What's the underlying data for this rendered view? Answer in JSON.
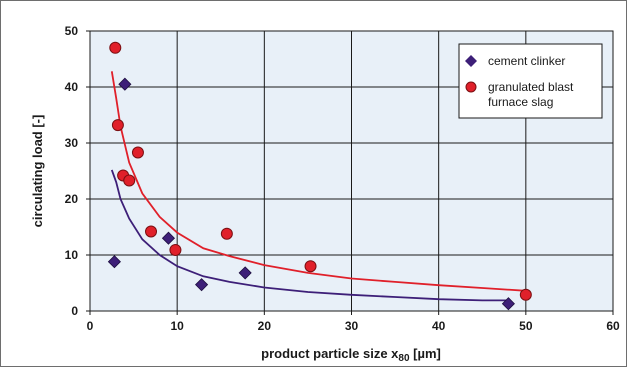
{
  "colors": {
    "plot_background": "#e8f0f8",
    "grid": "#1a1a1a",
    "clinker": "#3d1f78",
    "slag": "#e0202a",
    "slag_edge": "#7a0f12"
  },
  "chart_data": {
    "type": "scatter",
    "xlabel_main": "product particle size x",
    "xlabel_sub": "80",
    "xlabel_unit": " [µm]",
    "ylabel": "circulating load [-]",
    "xlim": [
      0,
      60
    ],
    "ylim": [
      0,
      50
    ],
    "x_ticks": [
      "0",
      "10",
      "20",
      "30",
      "40",
      "50",
      "60"
    ],
    "y_ticks": [
      "0",
      "10",
      "20",
      "30",
      "40",
      "50"
    ],
    "grid": true,
    "legend_position": "top-right",
    "series": [
      {
        "name": "cement clinker",
        "marker": "diamond",
        "color": "#3d1f78",
        "points": [
          [
            2.8,
            8.8
          ],
          [
            4.0,
            40.5
          ],
          [
            9.0,
            13.0
          ],
          [
            12.8,
            4.7
          ],
          [
            17.8,
            6.8
          ],
          [
            48.0,
            1.3
          ]
        ],
        "fit_line": [
          [
            2.5,
            25.2
          ],
          [
            3.0,
            23.0
          ],
          [
            3.5,
            20.0
          ],
          [
            4.5,
            16.5
          ],
          [
            6.0,
            12.8
          ],
          [
            8.0,
            10.0
          ],
          [
            10.0,
            8.0
          ],
          [
            13.0,
            6.2
          ],
          [
            16.0,
            5.2
          ],
          [
            20.0,
            4.2
          ],
          [
            25.0,
            3.4
          ],
          [
            30.0,
            2.9
          ],
          [
            35.0,
            2.5
          ],
          [
            40.0,
            2.1
          ],
          [
            45.0,
            1.9
          ],
          [
            48.0,
            1.9
          ]
        ]
      },
      {
        "name": "granulated blast furnace slag",
        "name_lines": [
          "granulated blast",
          "furnace slag"
        ],
        "marker": "circle",
        "color": "#e0202a",
        "points": [
          [
            2.9,
            47.0
          ],
          [
            3.2,
            33.2
          ],
          [
            3.8,
            24.2
          ],
          [
            4.5,
            23.3
          ],
          [
            5.5,
            28.3
          ],
          [
            7.0,
            14.2
          ],
          [
            9.8,
            10.9
          ],
          [
            15.7,
            13.8
          ],
          [
            25.3,
            8.0
          ],
          [
            50.0,
            2.9
          ]
        ],
        "fit_line": [
          [
            2.5,
            42.8
          ],
          [
            3.0,
            38.0
          ],
          [
            3.5,
            33.0
          ],
          [
            4.5,
            26.5
          ],
          [
            6.0,
            21.0
          ],
          [
            8.0,
            16.8
          ],
          [
            10.0,
            14.0
          ],
          [
            13.0,
            11.2
          ],
          [
            16.0,
            9.8
          ],
          [
            20.0,
            8.2
          ],
          [
            25.0,
            6.8
          ],
          [
            30.0,
            5.8
          ],
          [
            35.0,
            5.2
          ],
          [
            40.0,
            4.6
          ],
          [
            45.0,
            4.1
          ],
          [
            50.0,
            3.6
          ]
        ]
      }
    ]
  }
}
